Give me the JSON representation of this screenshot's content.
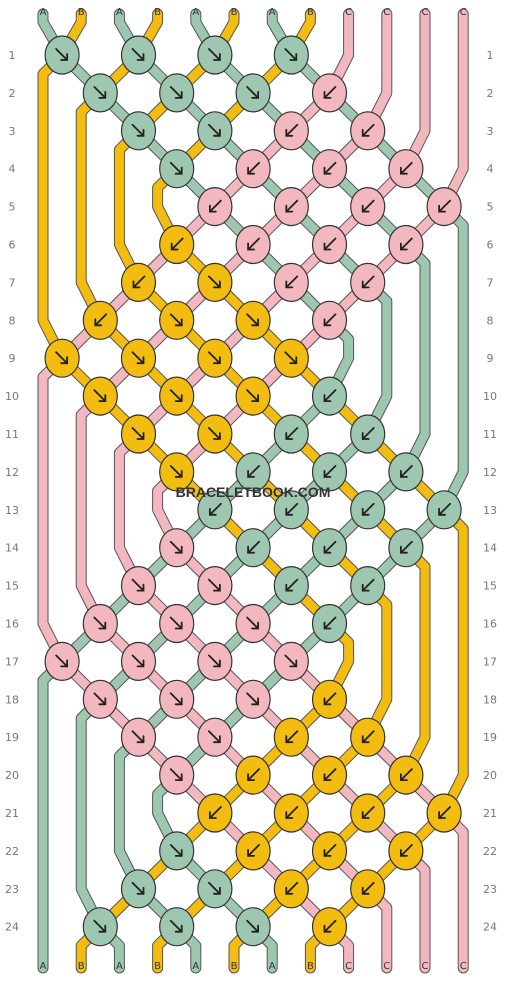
{
  "watermark": "BRACELETBOOK.COM",
  "colors": {
    "A": "#9ec7b1",
    "B": "#f2bd10",
    "C": "#f3b7c0"
  },
  "strands_top": [
    "A",
    "B",
    "A",
    "B",
    "A",
    "B",
    "A",
    "B",
    "C",
    "C",
    "C",
    "C"
  ],
  "strands_bottom": [
    "A",
    "B",
    "A",
    "B",
    "A",
    "B",
    "A",
    "B",
    "C",
    "C",
    "C",
    "C"
  ],
  "row_labels": [
    "1",
    "2",
    "3",
    "4",
    "5",
    "6",
    "7",
    "8",
    "9",
    "10",
    "11",
    "12",
    "13",
    "14",
    "15",
    "16",
    "17",
    "18",
    "19",
    "20",
    "21",
    "22",
    "23",
    "24"
  ],
  "knots": [
    {
      "row": 1,
      "pos": 0,
      "color": "A",
      "dir": "right"
    },
    {
      "row": 1,
      "pos": 2,
      "color": "A",
      "dir": "right"
    },
    {
      "row": 1,
      "pos": 4,
      "color": "A",
      "dir": "right"
    },
    {
      "row": 1,
      "pos": 6,
      "color": "A",
      "dir": "right"
    },
    {
      "row": 2,
      "pos": 1,
      "color": "A",
      "dir": "right"
    },
    {
      "row": 2,
      "pos": 3,
      "color": "A",
      "dir": "right"
    },
    {
      "row": 2,
      "pos": 5,
      "color": "A",
      "dir": "right"
    },
    {
      "row": 2,
      "pos": 7,
      "color": "C",
      "dir": "left"
    },
    {
      "row": 3,
      "pos": 2,
      "color": "A",
      "dir": "right"
    },
    {
      "row": 3,
      "pos": 4,
      "color": "A",
      "dir": "right"
    },
    {
      "row": 3,
      "pos": 6,
      "color": "C",
      "dir": "left"
    },
    {
      "row": 3,
      "pos": 8,
      "color": "C",
      "dir": "left"
    },
    {
      "row": 4,
      "pos": 3,
      "color": "A",
      "dir": "right"
    },
    {
      "row": 4,
      "pos": 5,
      "color": "C",
      "dir": "left"
    },
    {
      "row": 4,
      "pos": 7,
      "color": "C",
      "dir": "left"
    },
    {
      "row": 4,
      "pos": 9,
      "color": "C",
      "dir": "left"
    },
    {
      "row": 5,
      "pos": 4,
      "color": "C",
      "dir": "left"
    },
    {
      "row": 5,
      "pos": 6,
      "color": "C",
      "dir": "left"
    },
    {
      "row": 5,
      "pos": 8,
      "color": "C",
      "dir": "left"
    },
    {
      "row": 5,
      "pos": 10,
      "color": "C",
      "dir": "left"
    },
    {
      "row": 6,
      "pos": 3,
      "color": "B",
      "dir": "left"
    },
    {
      "row": 6,
      "pos": 5,
      "color": "C",
      "dir": "left"
    },
    {
      "row": 6,
      "pos": 7,
      "color": "C",
      "dir": "left"
    },
    {
      "row": 6,
      "pos": 9,
      "color": "C",
      "dir": "left"
    },
    {
      "row": 7,
      "pos": 2,
      "color": "B",
      "dir": "left"
    },
    {
      "row": 7,
      "pos": 4,
      "color": "B",
      "dir": "right"
    },
    {
      "row": 7,
      "pos": 6,
      "color": "C",
      "dir": "left"
    },
    {
      "row": 7,
      "pos": 8,
      "color": "C",
      "dir": "left"
    },
    {
      "row": 8,
      "pos": 1,
      "color": "B",
      "dir": "left"
    },
    {
      "row": 8,
      "pos": 3,
      "color": "B",
      "dir": "right"
    },
    {
      "row": 8,
      "pos": 5,
      "color": "B",
      "dir": "right"
    },
    {
      "row": 8,
      "pos": 7,
      "color": "C",
      "dir": "left"
    },
    {
      "row": 9,
      "pos": 0,
      "color": "B",
      "dir": "right"
    },
    {
      "row": 9,
      "pos": 2,
      "color": "B",
      "dir": "right"
    },
    {
      "row": 9,
      "pos": 4,
      "color": "B",
      "dir": "right"
    },
    {
      "row": 9,
      "pos": 6,
      "color": "B",
      "dir": "right"
    },
    {
      "row": 10,
      "pos": 1,
      "color": "B",
      "dir": "right"
    },
    {
      "row": 10,
      "pos": 3,
      "color": "B",
      "dir": "right"
    },
    {
      "row": 10,
      "pos": 5,
      "color": "B",
      "dir": "right"
    },
    {
      "row": 10,
      "pos": 7,
      "color": "A",
      "dir": "left"
    },
    {
      "row": 11,
      "pos": 2,
      "color": "B",
      "dir": "right"
    },
    {
      "row": 11,
      "pos": 4,
      "color": "B",
      "dir": "right"
    },
    {
      "row": 11,
      "pos": 6,
      "color": "A",
      "dir": "left"
    },
    {
      "row": 11,
      "pos": 8,
      "color": "A",
      "dir": "left"
    },
    {
      "row": 12,
      "pos": 3,
      "color": "B",
      "dir": "right"
    },
    {
      "row": 12,
      "pos": 5,
      "color": "A",
      "dir": "left"
    },
    {
      "row": 12,
      "pos": 7,
      "color": "A",
      "dir": "left"
    },
    {
      "row": 12,
      "pos": 9,
      "color": "A",
      "dir": "left"
    },
    {
      "row": 13,
      "pos": 4,
      "color": "A",
      "dir": "left"
    },
    {
      "row": 13,
      "pos": 6,
      "color": "A",
      "dir": "left"
    },
    {
      "row": 13,
      "pos": 8,
      "color": "A",
      "dir": "left"
    },
    {
      "row": 13,
      "pos": 10,
      "color": "A",
      "dir": "left"
    },
    {
      "row": 14,
      "pos": 3,
      "color": "C",
      "dir": "right"
    },
    {
      "row": 14,
      "pos": 5,
      "color": "A",
      "dir": "left"
    },
    {
      "row": 14,
      "pos": 7,
      "color": "A",
      "dir": "left"
    },
    {
      "row": 14,
      "pos": 9,
      "color": "A",
      "dir": "left"
    },
    {
      "row": 15,
      "pos": 2,
      "color": "C",
      "dir": "right"
    },
    {
      "row": 15,
      "pos": 4,
      "color": "C",
      "dir": "right"
    },
    {
      "row": 15,
      "pos": 6,
      "color": "A",
      "dir": "left"
    },
    {
      "row": 15,
      "pos": 8,
      "color": "A",
      "dir": "left"
    },
    {
      "row": 16,
      "pos": 1,
      "color": "C",
      "dir": "right"
    },
    {
      "row": 16,
      "pos": 3,
      "color": "C",
      "dir": "right"
    },
    {
      "row": 16,
      "pos": 5,
      "color": "C",
      "dir": "right"
    },
    {
      "row": 16,
      "pos": 7,
      "color": "A",
      "dir": "left"
    },
    {
      "row": 17,
      "pos": 0,
      "color": "C",
      "dir": "right"
    },
    {
      "row": 17,
      "pos": 2,
      "color": "C",
      "dir": "right"
    },
    {
      "row": 17,
      "pos": 4,
      "color": "C",
      "dir": "right"
    },
    {
      "row": 17,
      "pos": 6,
      "color": "C",
      "dir": "right"
    },
    {
      "row": 18,
      "pos": 1,
      "color": "C",
      "dir": "right"
    },
    {
      "row": 18,
      "pos": 3,
      "color": "C",
      "dir": "right"
    },
    {
      "row": 18,
      "pos": 5,
      "color": "C",
      "dir": "right"
    },
    {
      "row": 18,
      "pos": 7,
      "color": "B",
      "dir": "left"
    },
    {
      "row": 19,
      "pos": 2,
      "color": "C",
      "dir": "right"
    },
    {
      "row": 19,
      "pos": 4,
      "color": "C",
      "dir": "right"
    },
    {
      "row": 19,
      "pos": 6,
      "color": "B",
      "dir": "left"
    },
    {
      "row": 19,
      "pos": 8,
      "color": "B",
      "dir": "left"
    },
    {
      "row": 20,
      "pos": 3,
      "color": "C",
      "dir": "right"
    },
    {
      "row": 20,
      "pos": 5,
      "color": "B",
      "dir": "left"
    },
    {
      "row": 20,
      "pos": 7,
      "color": "B",
      "dir": "left"
    },
    {
      "row": 20,
      "pos": 9,
      "color": "B",
      "dir": "left"
    },
    {
      "row": 21,
      "pos": 4,
      "color": "B",
      "dir": "left"
    },
    {
      "row": 21,
      "pos": 6,
      "color": "B",
      "dir": "left"
    },
    {
      "row": 21,
      "pos": 8,
      "color": "B",
      "dir": "left"
    },
    {
      "row": 21,
      "pos": 10,
      "color": "B",
      "dir": "left"
    },
    {
      "row": 22,
      "pos": 3,
      "color": "A",
      "dir": "right"
    },
    {
      "row": 22,
      "pos": 5,
      "color": "B",
      "dir": "left"
    },
    {
      "row": 22,
      "pos": 7,
      "color": "B",
      "dir": "left"
    },
    {
      "row": 22,
      "pos": 9,
      "color": "B",
      "dir": "left"
    },
    {
      "row": 23,
      "pos": 2,
      "color": "A",
      "dir": "right"
    },
    {
      "row": 23,
      "pos": 4,
      "color": "A",
      "dir": "right"
    },
    {
      "row": 23,
      "pos": 6,
      "color": "B",
      "dir": "left"
    },
    {
      "row": 23,
      "pos": 8,
      "color": "B",
      "dir": "left"
    },
    {
      "row": 24,
      "pos": 1,
      "color": "A",
      "dir": "right"
    },
    {
      "row": 24,
      "pos": 3,
      "color": "A",
      "dir": "right"
    },
    {
      "row": 24,
      "pos": 5,
      "color": "A",
      "dir": "right"
    },
    {
      "row": 24,
      "pos": 7,
      "color": "B",
      "dir": "left"
    }
  ]
}
